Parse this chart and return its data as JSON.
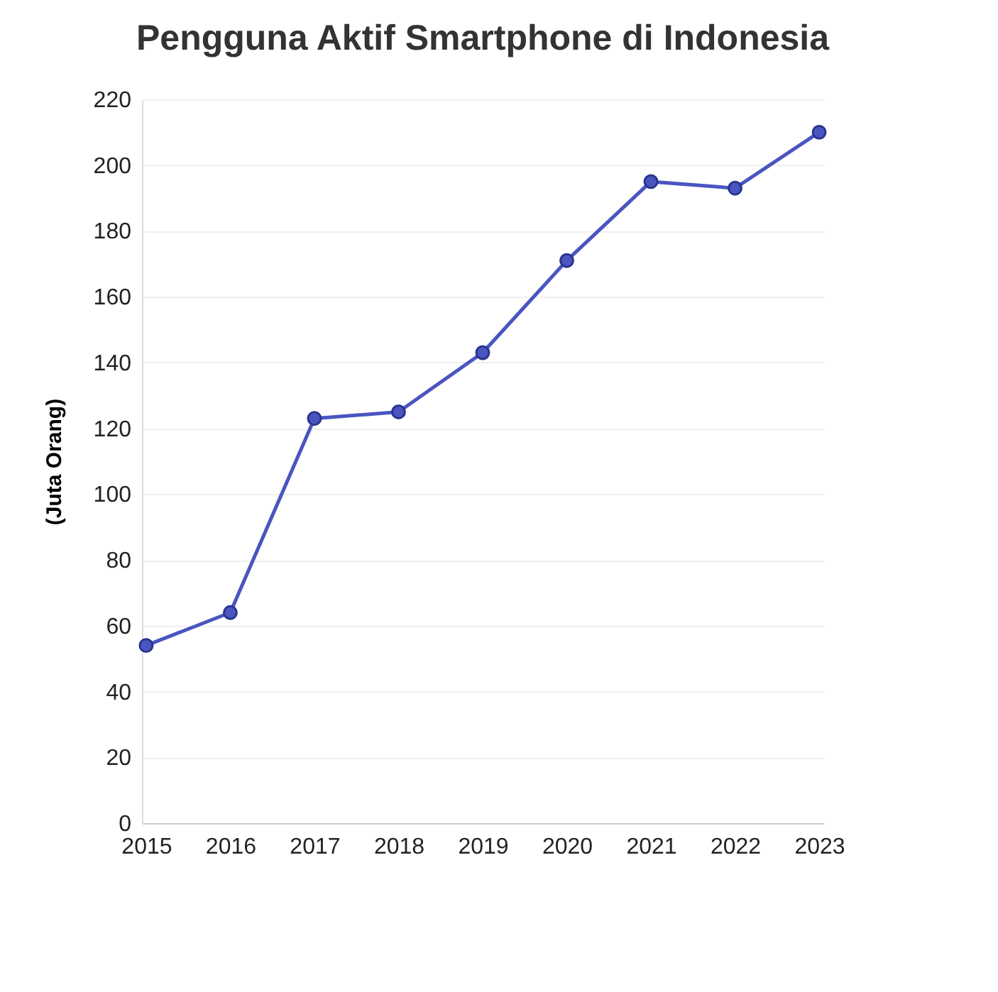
{
  "chart_data": {
    "type": "line",
    "title": "Pengguna Aktif Smartphone di Indonesia",
    "ylabel": "(Juta Orang)",
    "categories": [
      "2015",
      "2016",
      "2017",
      "2018",
      "2019",
      "2020",
      "2021",
      "2022",
      "2023"
    ],
    "series": [
      {
        "color": "#4a55c0",
        "values": [
          54,
          64,
          123,
          125,
          143,
          171,
          195,
          193,
          210
        ]
      }
    ],
    "ylim": [
      0,
      220
    ],
    "yticks": [
      0,
      20,
      40,
      60,
      80,
      100,
      120,
      140,
      160,
      180,
      200,
      220
    ],
    "grid": "y",
    "marker": "circle",
    "line_style": "solid"
  }
}
